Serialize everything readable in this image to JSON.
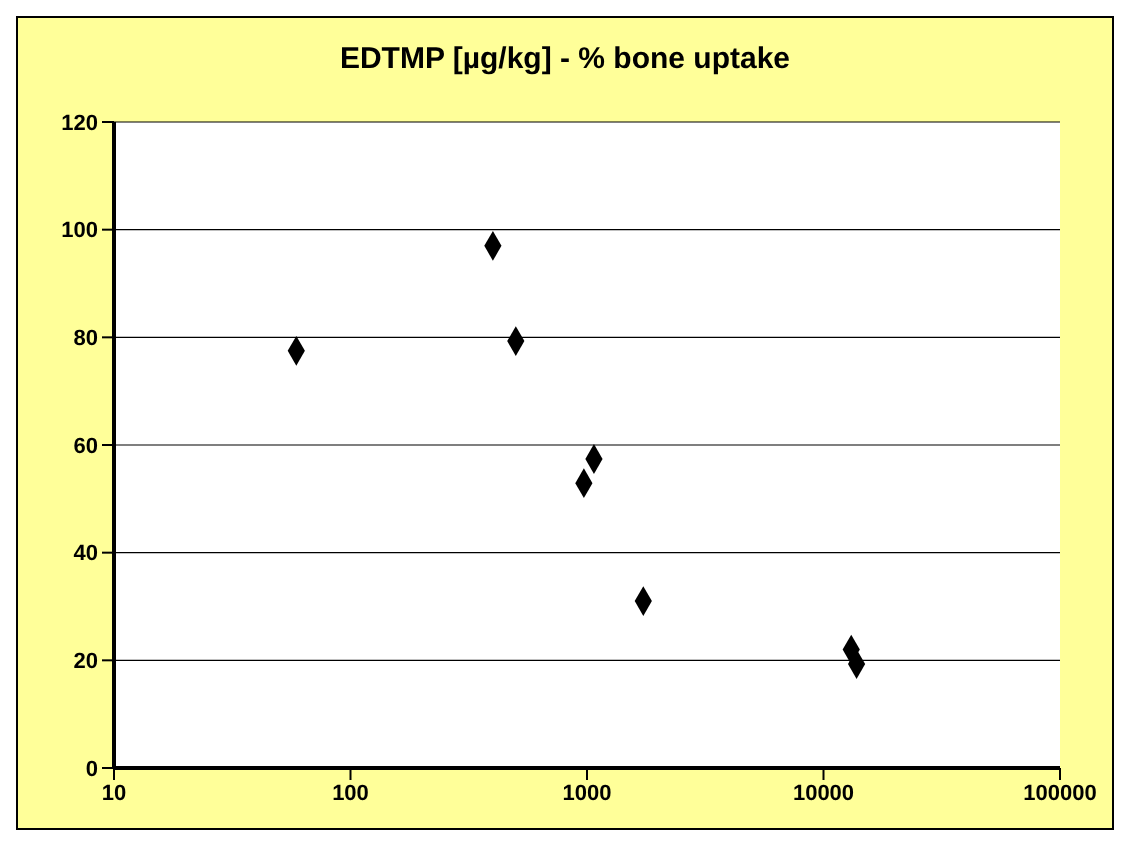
{
  "chart_data": {
    "type": "scatter",
    "title": "EDTMP [µg/kg] - % bone uptake",
    "x": [
      59,
      400,
      500,
      1070,
      970,
      1730,
      13100,
      13800
    ],
    "series": [
      {
        "color": "#000000",
        "values": [
          77.5,
          97,
          79.3,
          57.4,
          52.9,
          31,
          22,
          19.3
        ]
      }
    ],
    "log": "x",
    "xlim": [
      10,
      100000
    ],
    "xticks": [
      10,
      100,
      1000,
      10000,
      100000
    ],
    "ylim": [
      0,
      120
    ],
    "yticks": [
      0,
      20,
      40,
      60,
      80,
      100,
      120
    ],
    "grid": "y",
    "marker": "diamond"
  }
}
